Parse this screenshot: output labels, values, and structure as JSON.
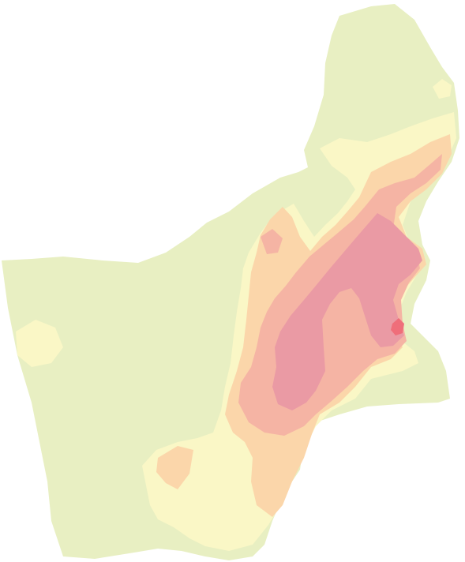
{
  "map": {
    "type": "choropleth-contour",
    "labels": [],
    "legend": null,
    "colors": {
      "background": "#ffffff",
      "class_1": "#e8efc2",
      "class_2": "#faf7c6",
      "class_3": "#fbd6aa",
      "class_4": "#f5b4a4",
      "class_5": "#ea9aa4",
      "class_6": "#ef6e7a"
    },
    "classes": [
      {
        "id": "class_1",
        "rank": 1
      },
      {
        "id": "class_2",
        "rank": 2
      },
      {
        "id": "class_3",
        "rank": 3
      },
      {
        "id": "class_4",
        "rank": 4
      },
      {
        "id": "class_5",
        "rank": 5
      },
      {
        "id": "class_6",
        "rank": 6
      }
    ]
  }
}
